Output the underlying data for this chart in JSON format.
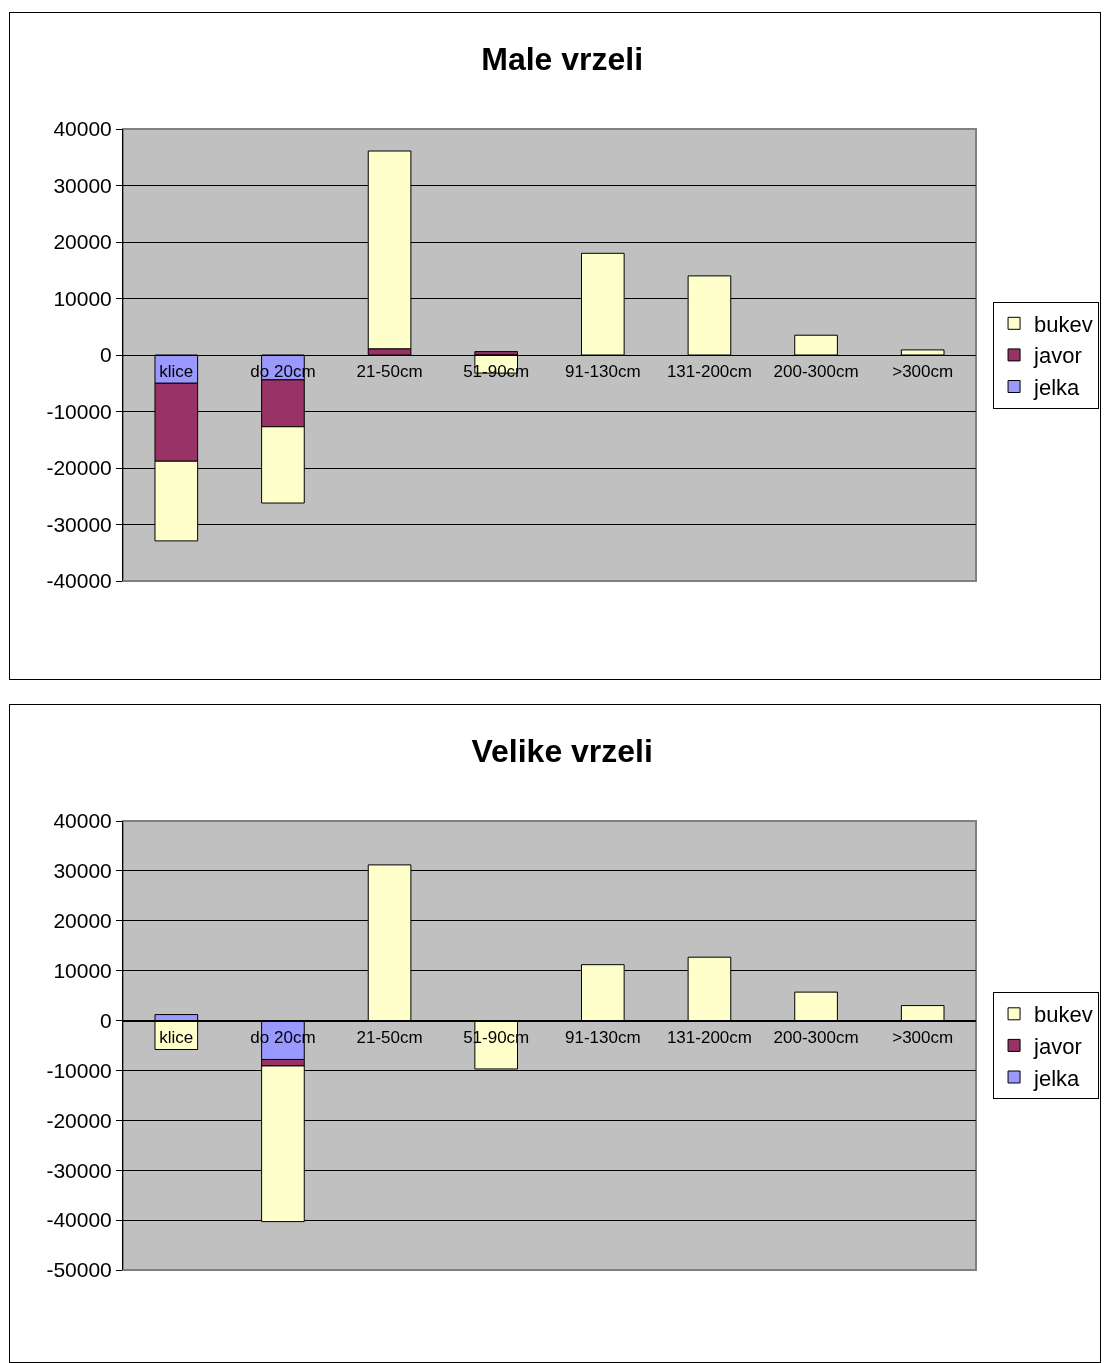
{
  "chart_data": [
    {
      "type": "bar",
      "title": "Male vrzeli",
      "categories": [
        "klice",
        "do 20cm",
        "21-50cm",
        "51-90cm",
        "91-130cm",
        "131-200cm",
        "200-300cm",
        ">300cm"
      ],
      "stacked": true,
      "series": [
        {
          "name": "jelka",
          "color": "#9999ff",
          "values": [
            -5000,
            -4400,
            null,
            null,
            null,
            null,
            null,
            null
          ]
        },
        {
          "name": "javor",
          "color": "#993366",
          "values": [
            -13800,
            -8300,
            1100,
            600,
            null,
            null,
            null,
            null
          ]
        },
        {
          "name": "bukev",
          "color": "#ffffcc",
          "values": [
            -14100,
            -13500,
            35000,
            -3200,
            18000,
            14000,
            3500,
            900
          ]
        }
      ],
      "ylim": [
        -40000,
        40000
      ],
      "yticks": [
        -40000,
        -30000,
        -20000,
        -10000,
        0,
        10000,
        20000,
        30000,
        40000
      ],
      "grid": "y",
      "legend": "right"
    },
    {
      "type": "bar",
      "title": "Velike vrzeli",
      "categories": [
        "klice",
        "do 20cm",
        "21-50cm",
        "51-90cm",
        "91-130cm",
        "131-200cm",
        "200-300cm",
        ">300cm"
      ],
      "stacked": true,
      "series": [
        {
          "name": "jelka",
          "color": "#9999ff",
          "values": [
            1200,
            -7800,
            null,
            null,
            null,
            null,
            null,
            null
          ]
        },
        {
          "name": "javor",
          "color": "#993366",
          "values": [
            null,
            -1300,
            null,
            null,
            null,
            null,
            null,
            null
          ]
        },
        {
          "name": "bukev",
          "color": "#ffffcc",
          "values": [
            -5800,
            -31200,
            31200,
            -9700,
            11200,
            12700,
            5700,
            3000
          ]
        }
      ],
      "ylim": [
        -50000,
        40000
      ],
      "yticks": [
        -50000,
        -40000,
        -30000,
        -20000,
        -10000,
        0,
        10000,
        20000,
        30000,
        40000
      ],
      "grid": "y",
      "legend": "right"
    }
  ]
}
